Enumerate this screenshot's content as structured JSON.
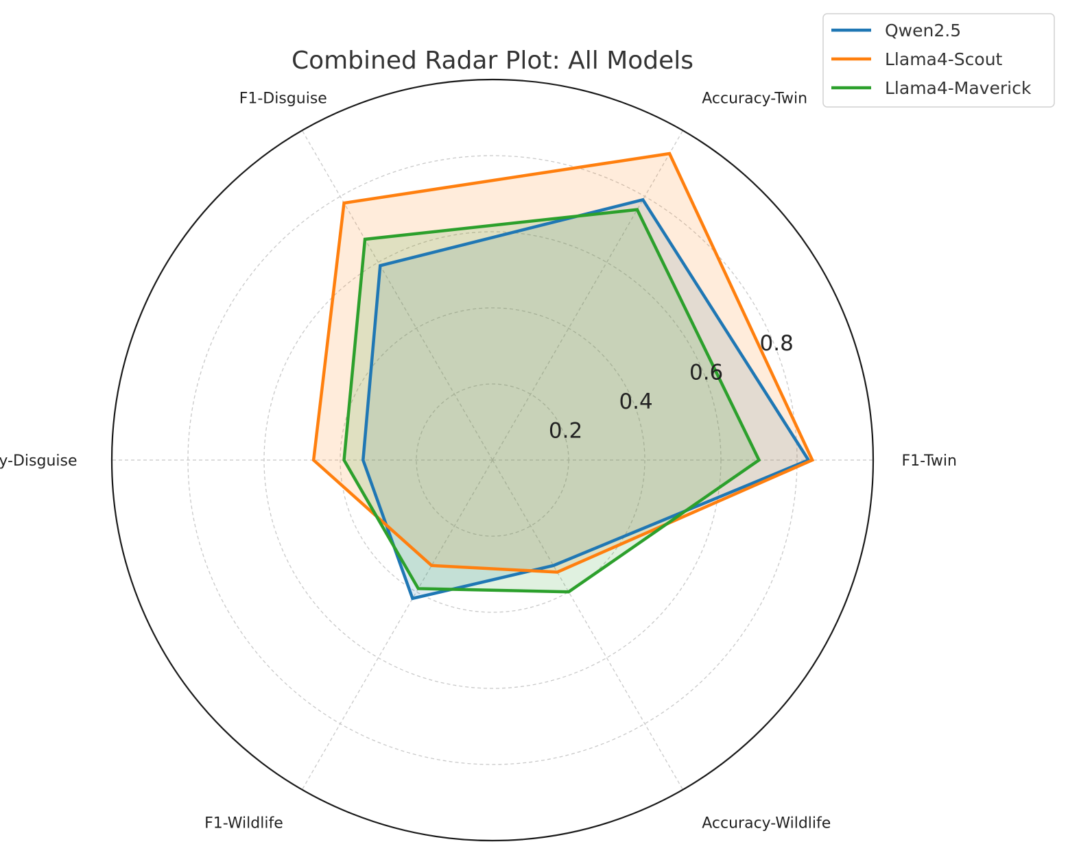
{
  "chart_data": {
    "type": "radar",
    "title": "Combined Radar Plot: All Models",
    "axes": [
      "F1-Twin",
      "Accuracy-Twin",
      "F1-Disguise",
      "Accuracy-Disguise",
      "F1-Wildlife",
      "Accuracy-Wildlife"
    ],
    "radial_ticks": [
      "0.2",
      "0.4",
      "0.6",
      "0.8"
    ],
    "rlim": [
      0,
      1.0
    ],
    "grid": true,
    "legend_position": "top-right",
    "series": [
      {
        "name": "Qwen2.5",
        "color": "#1f77b4",
        "values": [
          0.83,
          0.79,
          0.59,
          0.34,
          0.42,
          0.32
        ]
      },
      {
        "name": "Llama4-Scout",
        "color": "#ff7f0e",
        "values": [
          0.84,
          0.93,
          0.78,
          0.47,
          0.32,
          0.34
        ]
      },
      {
        "name": "Llama4-Maverick",
        "color": "#2ca02c",
        "values": [
          0.7,
          0.76,
          0.67,
          0.39,
          0.39,
          0.4
        ]
      }
    ]
  }
}
